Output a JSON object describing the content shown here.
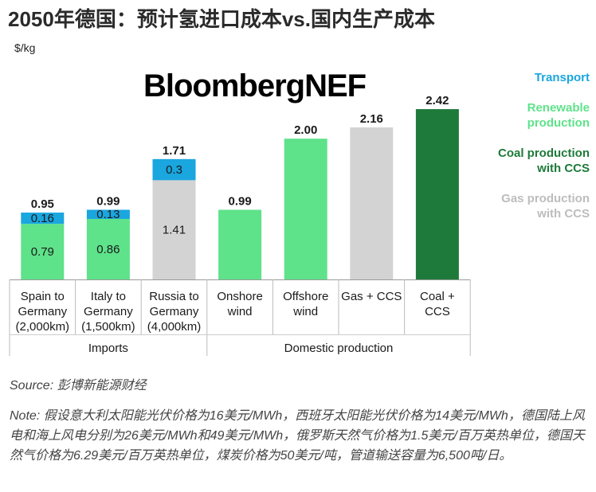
{
  "page": {
    "title": "2050年德国：预计氢进口成本vs.国内生产成本",
    "unit": "$/kg",
    "brand": "BloombergNEF",
    "source": "Source: 彭博新能源财经",
    "note": "Note: 假设意大利太阳能光伏价格为16美元/MWh，西班牙太阳能光伏价格为14美元/MWh，德国陆上风电和海上风电分别为26美元/MWh和49美元/MWh，俄罗斯天然气价格为1.5美元/百万英热单位，德国天然气价格为6.29美元/百万英热单位，煤炭价格为50美元/吨，管道输送容量为6,500吨/日。"
  },
  "colors": {
    "transport": "#1aa6df",
    "renewable": "#5ee28a",
    "coal": "#1e7a3a",
    "gas": "#d3d3d3"
  },
  "chart_data": {
    "type": "bar",
    "stacked": true,
    "title": "2050年德国：预计氢进口成本vs.国内生产成本",
    "ylabel": "$/kg",
    "ylim": [
      0,
      2.5
    ],
    "grid": false,
    "legend_position": "right",
    "legend": [
      {
        "key": "transport",
        "label": "Transport"
      },
      {
        "key": "renewable",
        "label": "Renewable production"
      },
      {
        "key": "coal",
        "label": "Coal production with CCS"
      },
      {
        "key": "gas",
        "label": "Gas production with CCS"
      }
    ],
    "categories": [
      {
        "label": [
          "Spain to",
          "Germany",
          "(2,000km)"
        ],
        "total": "0.95",
        "segments": [
          {
            "series": "renewable",
            "value": 0.79,
            "label": "0.79"
          },
          {
            "series": "transport",
            "value": 0.16,
            "label": "0.16"
          }
        ]
      },
      {
        "label": [
          "Italy to",
          "Germany",
          "(1,500km)"
        ],
        "total": "0.99",
        "segments": [
          {
            "series": "renewable",
            "value": 0.86,
            "label": "0.86"
          },
          {
            "series": "transport",
            "value": 0.13,
            "label": "0.13"
          }
        ]
      },
      {
        "label": [
          "Russia to",
          "Germany",
          "(4,000km)"
        ],
        "total": "1.71",
        "segments": [
          {
            "series": "gas",
            "value": 1.41,
            "label": "1.41"
          },
          {
            "series": "transport",
            "value": 0.3,
            "label": "0.3"
          }
        ]
      },
      {
        "label": [
          "Onshore",
          "wind"
        ],
        "total": "0.99",
        "segments": [
          {
            "series": "renewable",
            "value": 0.99,
            "label": ""
          }
        ]
      },
      {
        "label": [
          "Offshore",
          "wind"
        ],
        "total": "2.00",
        "segments": [
          {
            "series": "renewable",
            "value": 2.0,
            "label": ""
          }
        ]
      },
      {
        "label": [
          "Gas + CCS"
        ],
        "total": "2.16",
        "segments": [
          {
            "series": "gas",
            "value": 2.16,
            "label": ""
          }
        ]
      },
      {
        "label": [
          "Coal +",
          "CCS"
        ],
        "total": "2.42",
        "segments": [
          {
            "series": "coal",
            "value": 2.42,
            "label": ""
          }
        ]
      }
    ],
    "groups": [
      {
        "label": "Imports",
        "span": [
          0,
          2
        ]
      },
      {
        "label": "Domestic production",
        "span": [
          3,
          6
        ]
      }
    ]
  }
}
